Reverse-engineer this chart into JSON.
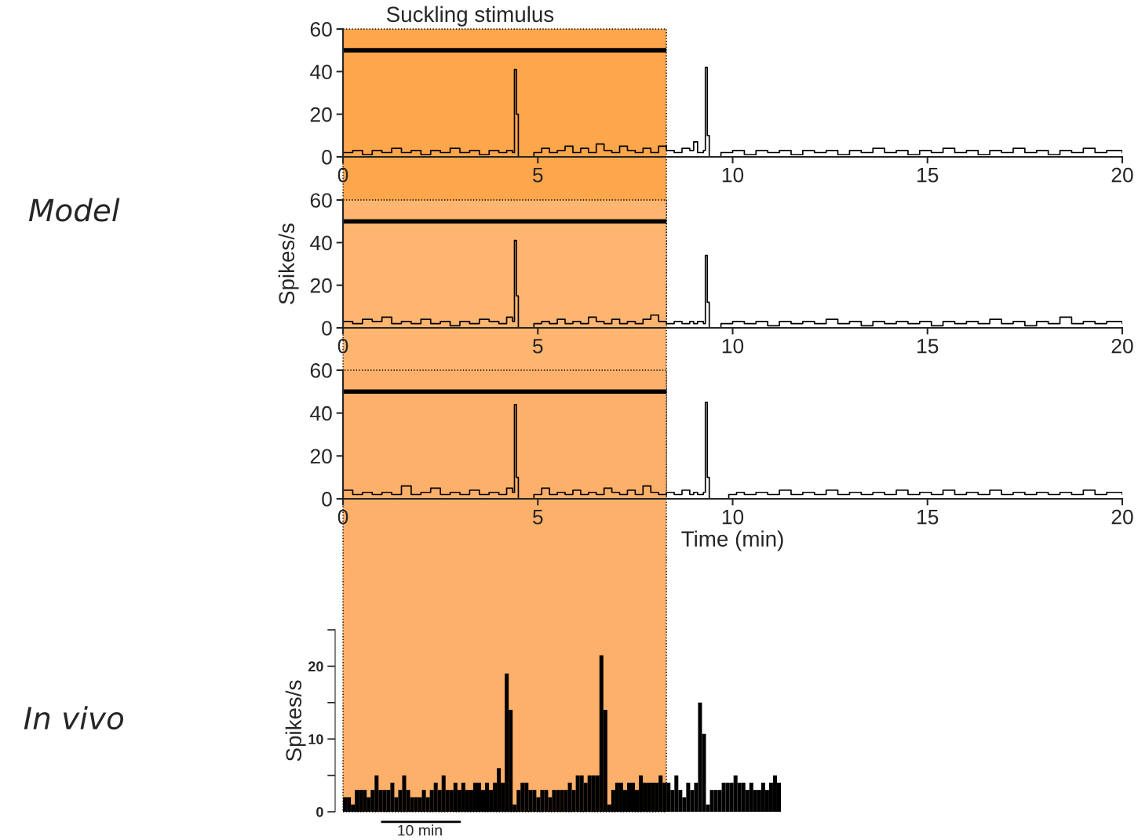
{
  "chart_data": [
    {
      "type": "step",
      "title": "Suckling stimulus",
      "xlim": [
        0,
        20
      ],
      "xticks": [
        0,
        5,
        10,
        15,
        20
      ],
      "ylim": [
        0,
        60
      ],
      "yticks": [
        0,
        20,
        40,
        60
      ],
      "grid": false,
      "legend": false,
      "bands": [
        {
          "axis": "x",
          "from": 0,
          "to": 8.3,
          "color": "#fea64c"
        }
      ],
      "series": [
        {
          "type": "line",
          "color": "#000000",
          "x": [
            0,
            8.3
          ],
          "values": [
            50,
            50
          ]
        },
        {
          "color": "#000000",
          "x": [
            0,
            0.25,
            0.5,
            0.75,
            1,
            1.25,
            1.5,
            1.75,
            2,
            2.25,
            2.5,
            2.75,
            3,
            3.25,
            3.5,
            3.75,
            4,
            4.2,
            4.35,
            4.4,
            4.45,
            4.5,
            4.8,
            4.9,
            5.1,
            5.3,
            5.5,
            5.7,
            5.9,
            6.1,
            6.3,
            6.5,
            6.7,
            6.9,
            7.1,
            7.3,
            7.5,
            7.7,
            7.9,
            8.1,
            8.3,
            8.5,
            8.7,
            8.9,
            9.0,
            9.1,
            9.25,
            9.3,
            9.35,
            9.4,
            9.6,
            9.7,
            10,
            10.3,
            10.6,
            10.9,
            11.2,
            11.5,
            11.8,
            12.1,
            12.4,
            12.7,
            13,
            13.3,
            13.6,
            13.9,
            14.2,
            14.5,
            14.8,
            15.1,
            15.4,
            15.7,
            16,
            16.3,
            16.6,
            16.9,
            17.2,
            17.5,
            17.8,
            18.1,
            18.4,
            18.7,
            19,
            19.3,
            19.6,
            20
          ],
          "values": [
            2,
            3,
            1,
            3,
            2,
            4,
            2,
            3,
            1,
            3,
            2,
            4,
            2,
            3,
            1,
            3,
            2,
            3,
            2,
            41,
            20,
            0,
            0,
            2,
            4,
            2,
            3,
            5,
            2,
            4,
            2,
            6,
            3,
            2,
            5,
            3,
            2,
            4,
            2,
            5,
            3,
            2,
            4,
            3,
            7,
            2,
            3,
            42,
            10,
            0,
            0,
            2,
            3,
            1,
            3,
            2,
            3,
            1,
            3,
            2,
            3,
            1,
            3,
            2,
            4,
            2,
            3,
            1,
            3,
            2,
            4,
            2,
            3,
            1,
            3,
            2,
            4,
            2,
            3,
            1,
            3,
            2,
            4,
            2,
            3,
            2
          ]
        }
      ]
    },
    {
      "type": "step",
      "ylabel": "Spikes/s",
      "annotations": [
        "Model"
      ],
      "xlim": [
        0,
        20
      ],
      "xticks": [
        0,
        5,
        10,
        15,
        20
      ],
      "ylim": [
        0,
        60
      ],
      "yticks": [
        0,
        20,
        40,
        60
      ],
      "grid": false,
      "legend": false,
      "bands": [
        {
          "axis": "x",
          "from": 0,
          "to": 8.3,
          "color": "#fdb56f"
        }
      ],
      "series": [
        {
          "type": "line",
          "color": "#000000",
          "x": [
            0,
            8.3
          ],
          "values": [
            50,
            50
          ]
        },
        {
          "color": "#000000",
          "x": [
            0,
            0.25,
            0.5,
            0.75,
            1,
            1.25,
            1.5,
            1.75,
            2,
            2.25,
            2.5,
            2.75,
            3,
            3.25,
            3.5,
            3.75,
            4,
            4.2,
            4.35,
            4.4,
            4.45,
            4.5,
            4.8,
            4.9,
            5.1,
            5.3,
            5.5,
            5.7,
            5.9,
            6.1,
            6.3,
            6.5,
            6.7,
            6.9,
            7.1,
            7.3,
            7.5,
            7.7,
            7.9,
            8.1,
            8.3,
            8.5,
            8.7,
            8.9,
            9.0,
            9.1,
            9.25,
            9.3,
            9.35,
            9.4,
            9.6,
            9.7,
            10,
            10.3,
            10.6,
            10.9,
            11.2,
            11.5,
            11.8,
            12.1,
            12.4,
            12.7,
            13,
            13.3,
            13.6,
            13.9,
            14.2,
            14.5,
            14.8,
            15.1,
            15.4,
            15.7,
            16,
            16.3,
            16.6,
            16.9,
            17.2,
            17.5,
            17.8,
            18.1,
            18.4,
            18.7,
            19,
            19.3,
            19.6,
            20
          ],
          "values": [
            3,
            2,
            4,
            3,
            5,
            2,
            3,
            2,
            4,
            2,
            3,
            1,
            3,
            2,
            4,
            3,
            2,
            5,
            3,
            41,
            15,
            0,
            0,
            2,
            3,
            2,
            4,
            2,
            3,
            2,
            5,
            3,
            2,
            4,
            2,
            3,
            2,
            4,
            6,
            3,
            2,
            3,
            2,
            3,
            2,
            3,
            2,
            34,
            12,
            0,
            0,
            2,
            3,
            2,
            3,
            1,
            3,
            2,
            3,
            2,
            4,
            2,
            3,
            1,
            3,
            2,
            3,
            2,
            3,
            1,
            3,
            2,
            3,
            2,
            4,
            2,
            3,
            1,
            3,
            2,
            5,
            2,
            3,
            2,
            3,
            2
          ]
        }
      ]
    },
    {
      "type": "step",
      "xlabel": "Time (min)",
      "xlim": [
        0,
        20
      ],
      "xticks": [
        0,
        5,
        10,
        15,
        20
      ],
      "ylim": [
        0,
        60
      ],
      "yticks": [
        0,
        20,
        40,
        60
      ],
      "grid": false,
      "legend": false,
      "bands": [
        {
          "axis": "x",
          "from": 0,
          "to": 8.3,
          "color": "#fdb06a"
        }
      ],
      "series": [
        {
          "type": "line",
          "color": "#000000",
          "x": [
            0,
            8.3
          ],
          "values": [
            50,
            50
          ]
        },
        {
          "color": "#000000",
          "x": [
            0,
            0.25,
            0.5,
            0.75,
            1,
            1.25,
            1.5,
            1.75,
            2,
            2.25,
            2.5,
            2.75,
            3,
            3.25,
            3.5,
            3.75,
            4,
            4.2,
            4.35,
            4.4,
            4.45,
            4.5,
            4.8,
            4.9,
            5.1,
            5.3,
            5.5,
            5.7,
            5.9,
            6.1,
            6.3,
            6.5,
            6.7,
            6.9,
            7.1,
            7.3,
            7.5,
            7.7,
            7.9,
            8.1,
            8.3,
            8.5,
            8.7,
            8.9,
            9.0,
            9.1,
            9.25,
            9.3,
            9.35,
            9.4,
            9.6,
            9.9,
            10.1,
            10.3,
            10.6,
            10.9,
            11.2,
            11.5,
            11.8,
            12.1,
            12.4,
            12.7,
            13,
            13.3,
            13.6,
            13.9,
            14.2,
            14.5,
            14.8,
            15.1,
            15.4,
            15.7,
            16,
            16.3,
            16.6,
            16.9,
            17.2,
            17.5,
            17.8,
            18.1,
            18.4,
            18.7,
            19,
            19.3,
            19.6,
            20
          ],
          "values": [
            4,
            2,
            3,
            2,
            3,
            2,
            6,
            2,
            3,
            5,
            2,
            3,
            2,
            4,
            2,
            3,
            2,
            5,
            3,
            44,
            10,
            0,
            0,
            2,
            5,
            2,
            3,
            2,
            4,
            2,
            3,
            2,
            5,
            3,
            2,
            4,
            2,
            6,
            3,
            2,
            3,
            2,
            4,
            2,
            3,
            2,
            3,
            45,
            10,
            0,
            0,
            2,
            3,
            2,
            3,
            2,
            4,
            2,
            3,
            2,
            4,
            2,
            3,
            2,
            3,
            2,
            4,
            2,
            3,
            2,
            4,
            2,
            3,
            2,
            4,
            2,
            3,
            2,
            3,
            2,
            3,
            2,
            4,
            2,
            3,
            2
          ]
        }
      ]
    },
    {
      "type": "bar",
      "ylabel": "Spikes/s",
      "annotations": [
        "In vivo",
        "10 min"
      ],
      "tick_labels": "y",
      "ylim": [
        0,
        25
      ],
      "yticks": [
        0,
        {
          "value": 5,
          "label": null
        },
        10,
        {
          "value": 15,
          "label": null
        },
        20,
        {
          "value": 25,
          "label": null
        }
      ],
      "grid": false,
      "legend": false,
      "categories": [
        null,
        null,
        null,
        null,
        null,
        null,
        null,
        null,
        null,
        null,
        null,
        null,
        null,
        null,
        null,
        null,
        null,
        null,
        null,
        null,
        null,
        null,
        null,
        null,
        null,
        null,
        null,
        null,
        null,
        null,
        null,
        null,
        null,
        null,
        null,
        null,
        null,
        null,
        null,
        null,
        null,
        null,
        null,
        null,
        null,
        null,
        null,
        null,
        null,
        null,
        null,
        null,
        null,
        null,
        null,
        null,
        null,
        null,
        null,
        null,
        null,
        null,
        null,
        null,
        null,
        null,
        null,
        null,
        null,
        null,
        null,
        null,
        null,
        null,
        null,
        null,
        null,
        null,
        null,
        null,
        null,
        null,
        null,
        null,
        null,
        null,
        null,
        null,
        null,
        null,
        null,
        null,
        null,
        null,
        null,
        null,
        null,
        null,
        null,
        null,
        null,
        null,
        null,
        null,
        null,
        null,
        null,
        null,
        null,
        null,
        null
      ],
      "series": [
        {
          "color": "#000000",
          "values": [
            2,
            2,
            1,
            3,
            3,
            3,
            2,
            3,
            5,
            3,
            3,
            3,
            4,
            2,
            3,
            5,
            3,
            2,
            2,
            2,
            3,
            2,
            3,
            4,
            3,
            5,
            3,
            3,
            4,
            3,
            4,
            3,
            3,
            4,
            4,
            3,
            4,
            3,
            4,
            6,
            4,
            19,
            14,
            1,
            3,
            4,
            4,
            3,
            3,
            2,
            3,
            3,
            2,
            3,
            3,
            3,
            3,
            4,
            3,
            5,
            5,
            4,
            5,
            5,
            5,
            21.5,
            14,
            1,
            3,
            4,
            4,
            3,
            4,
            4,
            3,
            5,
            4,
            4,
            4,
            4,
            5,
            4,
            4,
            3,
            5,
            3,
            2,
            4,
            3,
            4,
            15,
            10.7,
            1,
            3,
            3,
            3,
            4,
            4,
            4,
            5,
            4,
            4,
            3,
            4,
            3,
            3,
            4,
            3,
            4,
            5,
            4
          ]
        }
      ]
    }
  ]
}
